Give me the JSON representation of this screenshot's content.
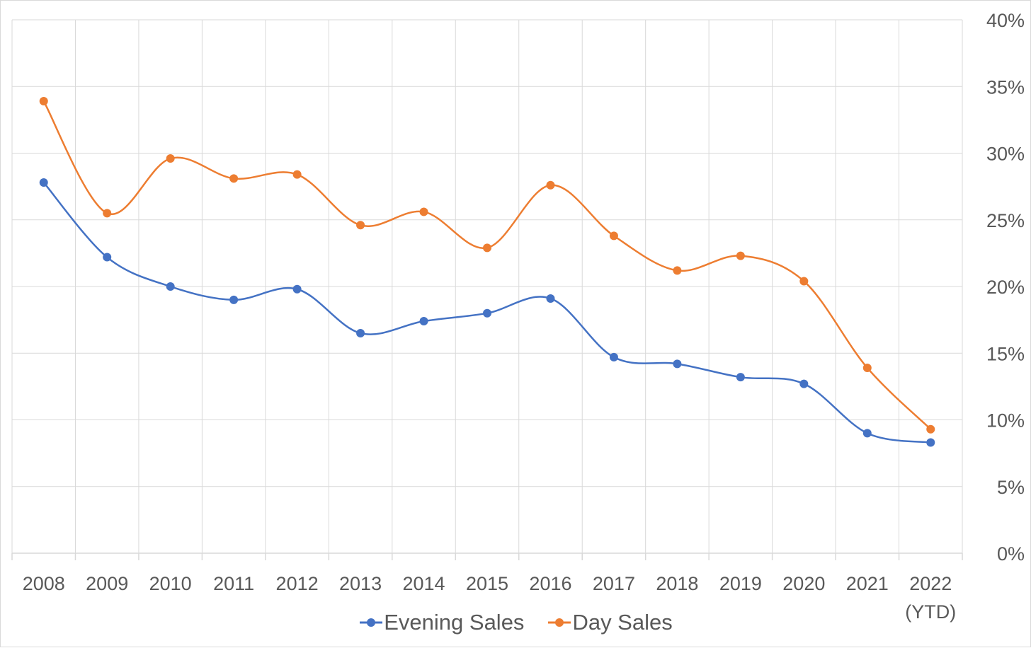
{
  "chart_data": {
    "type": "line",
    "smooth": true,
    "categories": [
      "2008",
      "2009",
      "2010",
      "2011",
      "2012",
      "2013",
      "2014",
      "2015",
      "2016",
      "2017",
      "2018",
      "2019",
      "2020",
      "2021",
      "2022\n(YTD)"
    ],
    "series": [
      {
        "name": "Evening Sales",
        "color": "#4472c4",
        "values": [
          27.8,
          22.2,
          20.0,
          19.0,
          19.8,
          16.5,
          17.4,
          18.0,
          19.1,
          14.7,
          14.2,
          13.2,
          12.7,
          9.0,
          8.3
        ]
      },
      {
        "name": "Day Sales",
        "color": "#ed7d31",
        "values": [
          33.9,
          25.5,
          29.6,
          28.1,
          28.4,
          24.6,
          25.6,
          22.9,
          27.6,
          23.8,
          21.2,
          22.3,
          20.4,
          13.9,
          9.3
        ]
      }
    ],
    "y_axis": {
      "position": "right",
      "min": 0,
      "max": 40,
      "step": 5,
      "tick_labels": [
        "0%",
        "5%",
        "10%",
        "15%",
        "20%",
        "25%",
        "30%",
        "35%",
        "40%"
      ]
    },
    "grid": true,
    "legend": "bottom",
    "gridline_color": "#d9d9d9",
    "label_color": "#595959"
  }
}
